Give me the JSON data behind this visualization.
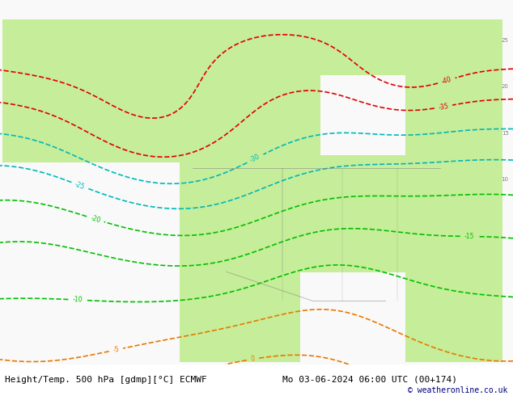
{
  "title_left": "Height/Temp. 500 hPa [gdmp][°C] ECMWF",
  "title_right": "Mo 03-06-2024 06:00 UTC (00+174)",
  "copyright": "© weatheronline.co.uk",
  "fig_width": 6.34,
  "fig_height": 4.9,
  "dpi": 100,
  "bg_color": "#e8e8e8",
  "land_color_warm": "#c8e8a0",
  "land_color_cold": "#d0d0d0",
  "ocean_color": "#d8d8d8",
  "contour_geopotential_color": "#000000",
  "contour_temp_warm_color": "#e87800",
  "contour_temp_cold_color_1": "#00c000",
  "contour_temp_cold_color_2": "#00b8b8",
  "contour_temp_very_cold_color": "#e00000",
  "bottom_bar_color": "#c8c8e8",
  "text_color_main": "#000080",
  "label_fontsize": 7,
  "title_fontsize": 8,
  "copyright_fontsize": 7
}
